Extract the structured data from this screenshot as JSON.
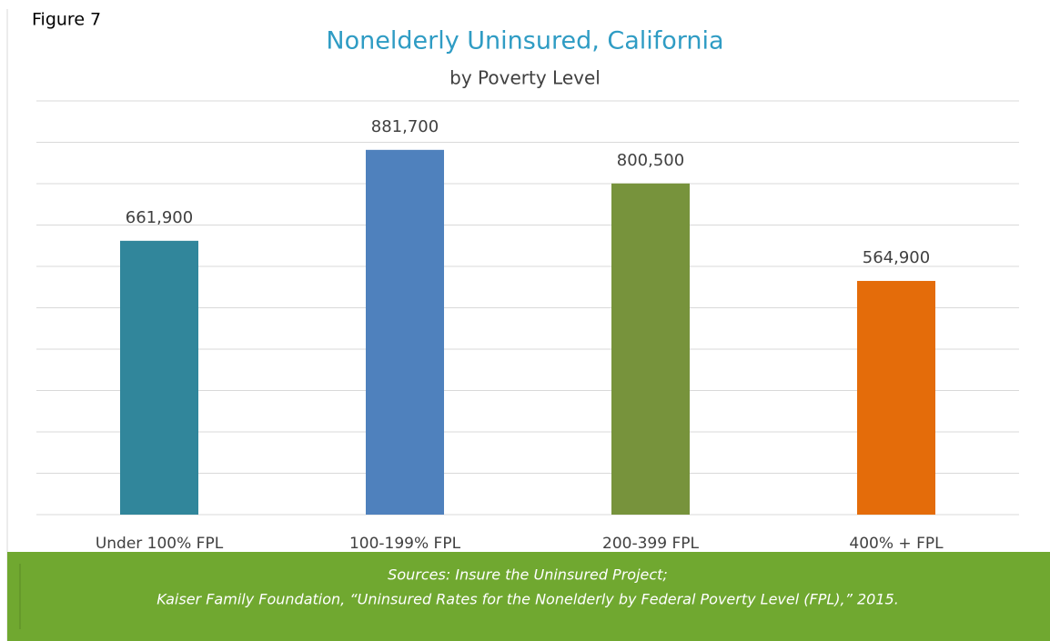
{
  "figure_label": "Figure 7",
  "chart_data": {
    "type": "bar",
    "title": "Nonelderly Uninsured, California",
    "subtitle": "by Poverty Level",
    "categories": [
      "Under 100% FPL",
      "100-199% FPL",
      "200-399 FPL",
      "400% + FPL"
    ],
    "values": [
      661900,
      881700,
      800500,
      564900
    ],
    "value_labels": [
      "661,900",
      "881,700",
      "800,500",
      "564,900"
    ],
    "colors": [
      "#31869b",
      "#4f81bd",
      "#77933c",
      "#e46c0a"
    ],
    "ylim": [
      0,
      1000000
    ],
    "yticks": [
      0,
      100000,
      200000,
      300000,
      400000,
      500000,
      600000,
      700000,
      800000,
      900000,
      1000000
    ],
    "grid": true
  },
  "footer": {
    "lines": [
      "Sources: Insure the Uninsured Project;",
      "Kaiser Family Foundation, “Uninsured Rates for the Nonelderly by Federal Poverty Level (FPL),” 2015."
    ]
  }
}
